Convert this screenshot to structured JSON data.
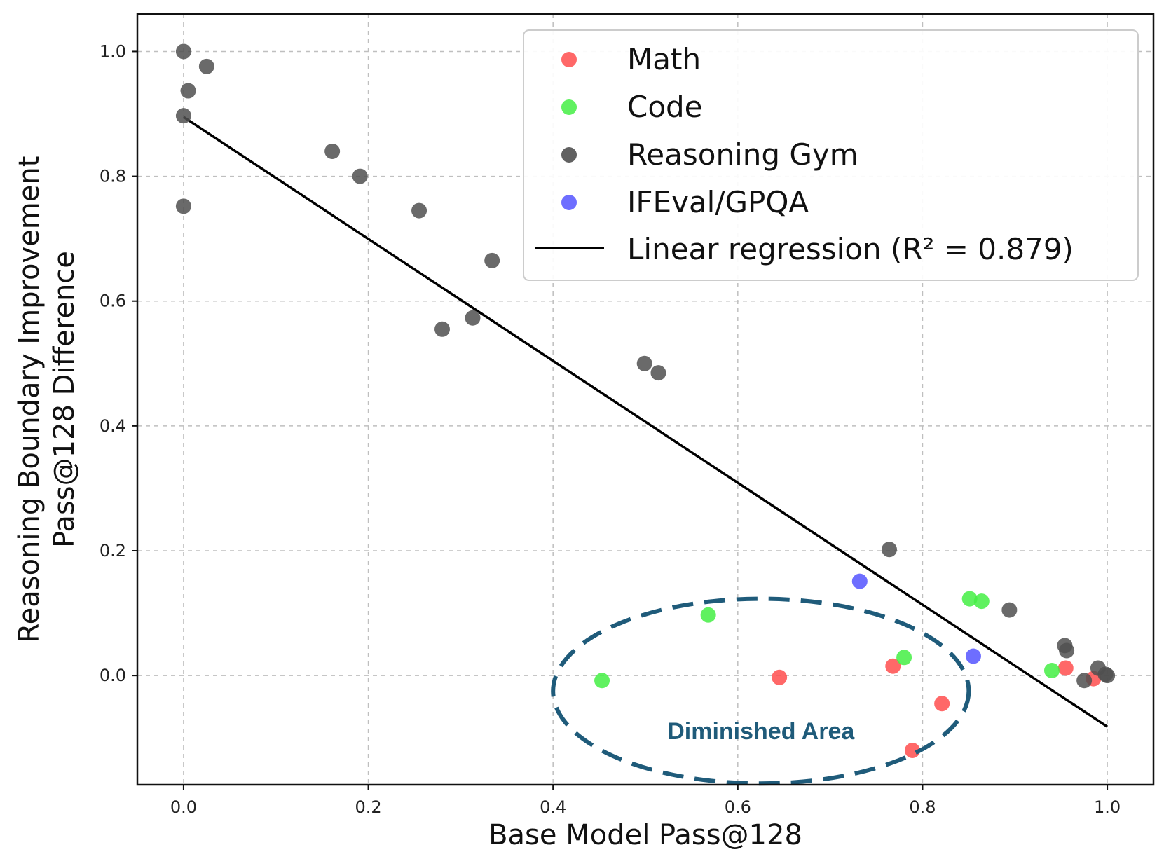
{
  "chart_data": {
    "type": "scatter",
    "title": "",
    "xlabel": "Base Model Pass@128",
    "ylabel_line1": "Reasoning Boundary Improvement",
    "ylabel_line2": "Pass@128 Difference",
    "xlim": [
      -0.05,
      1.05
    ],
    "ylim": [
      -0.175,
      1.06
    ],
    "xticks": [
      0.0,
      0.2,
      0.4,
      0.6,
      0.8,
      1.0
    ],
    "xtick_labels": [
      "0.0",
      "0.2",
      "0.4",
      "0.6",
      "0.8",
      "1.0"
    ],
    "yticks": [
      0.0,
      0.2,
      0.4,
      0.6,
      0.8,
      1.0
    ],
    "ytick_labels": [
      "0.0",
      "0.2",
      "0.4",
      "0.6",
      "0.8",
      "1.0"
    ],
    "grid": true,
    "legend_position": "top-right",
    "series": [
      {
        "name": "Math",
        "color": "#ff4d4d",
        "points": [
          {
            "x": 0.645,
            "y": -0.003
          },
          {
            "x": 0.768,
            "y": 0.015
          },
          {
            "x": 0.821,
            "y": -0.045
          },
          {
            "x": 0.789,
            "y": -0.12
          },
          {
            "x": 0.955,
            "y": 0.012
          },
          {
            "x": 0.985,
            "y": -0.005
          }
        ]
      },
      {
        "name": "Code",
        "color": "#44ee44",
        "points": [
          {
            "x": 0.453,
            "y": -0.008
          },
          {
            "x": 0.568,
            "y": 0.097
          },
          {
            "x": 0.78,
            "y": 0.029
          },
          {
            "x": 0.851,
            "y": 0.123
          },
          {
            "x": 0.864,
            "y": 0.119
          },
          {
            "x": 0.94,
            "y": 0.008
          }
        ]
      },
      {
        "name": "Reasoning Gym",
        "color": "#505050",
        "points": [
          {
            "x": 0.0,
            "y": 1.0
          },
          {
            "x": 0.025,
            "y": 0.976
          },
          {
            "x": 0.005,
            "y": 0.937
          },
          {
            "x": 0.0,
            "y": 0.897
          },
          {
            "x": 0.0,
            "y": 0.752
          },
          {
            "x": 0.161,
            "y": 0.84
          },
          {
            "x": 0.191,
            "y": 0.8
          },
          {
            "x": 0.255,
            "y": 0.745
          },
          {
            "x": 0.334,
            "y": 0.665
          },
          {
            "x": 0.28,
            "y": 0.555
          },
          {
            "x": 0.313,
            "y": 0.573
          },
          {
            "x": 0.499,
            "y": 0.5
          },
          {
            "x": 0.514,
            "y": 0.485
          },
          {
            "x": 0.764,
            "y": 0.202
          },
          {
            "x": 0.894,
            "y": 0.105
          },
          {
            "x": 0.954,
            "y": 0.048
          },
          {
            "x": 0.956,
            "y": 0.04
          },
          {
            "x": 0.975,
            "y": -0.008
          },
          {
            "x": 0.99,
            "y": 0.012
          },
          {
            "x": 1.0,
            "y": 0.0
          },
          {
            "x": 0.998,
            "y": 0.002
          }
        ]
      },
      {
        "name": "IFEval/GPQA",
        "color": "#5555ff",
        "points": [
          {
            "x": 0.732,
            "y": 0.151
          },
          {
            "x": 0.855,
            "y": 0.031
          }
        ]
      }
    ],
    "regression": {
      "name": "Linear regression (R² = 0.879)",
      "color": "#000000",
      "x_range": [
        0.0,
        1.0
      ],
      "y_range": [
        0.895,
        -0.082
      ]
    },
    "annotation": {
      "text": "Diminished Area",
      "color": "#1f5b7a",
      "ellipse_center": [
        0.625,
        -0.025
      ],
      "ellipse_radius_x": 0.225,
      "ellipse_radius_y": 0.148
    }
  }
}
